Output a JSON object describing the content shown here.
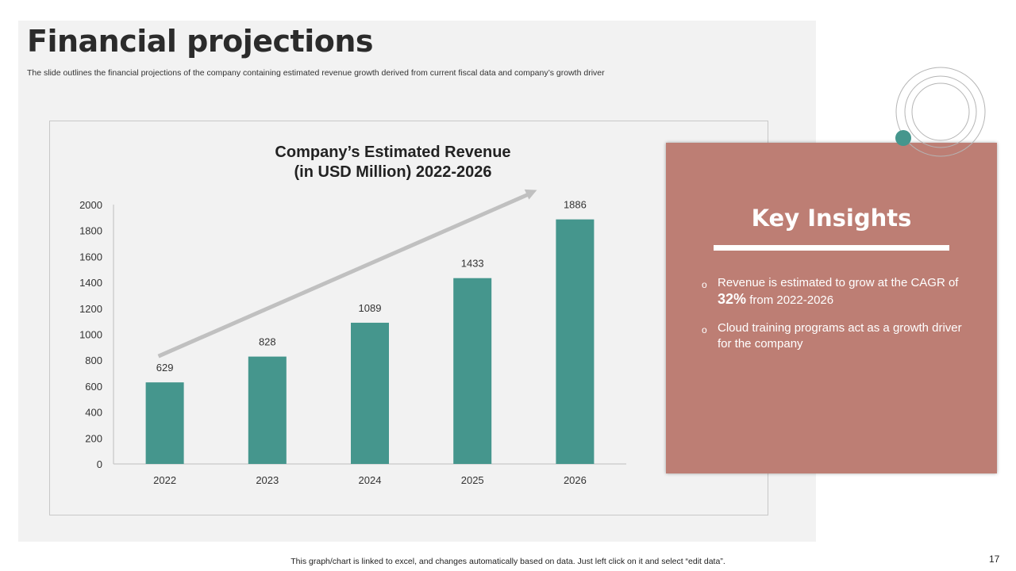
{
  "slide": {
    "title": "Financial projections",
    "subtitle": "The slide outlines the financial projections of the company containing estimated revenue growth derived from current fiscal data and company’s growth driver",
    "footnote": "This graph/chart is linked to excel,  and changes automatically based on data. Just left click on it and select “edit data”.",
    "page_number": "17"
  },
  "chart_data": {
    "type": "bar",
    "title_line1": "Company’s Estimated Revenue",
    "title_line2": "(in USD Million)  2022-2026",
    "categories": [
      "2022",
      "2023",
      "2024",
      "2025",
      "2026"
    ],
    "values": [
      629,
      828,
      1089,
      1433,
      1886
    ],
    "ylim": [
      0,
      2000
    ],
    "yticks": [
      0,
      200,
      400,
      600,
      800,
      1000,
      1200,
      1400,
      1600,
      1800,
      2000
    ],
    "xlabel": "",
    "ylabel": "",
    "grid": false,
    "legend": "none",
    "trend_arrow": true
  },
  "insights": {
    "title": "Key Insights",
    "bullet1_pre": "Revenue  is estimated to grow at the CAGR of ",
    "bullet1_value": "32%",
    "bullet1_post": " from 2022-2026",
    "bullet2": "Cloud training programs act as a growth driver for the company"
  },
  "colors": {
    "bar": "#45968d",
    "card": "#bd7e74",
    "accent_dot": "#45968d",
    "arrow": "#c0c0c0"
  }
}
